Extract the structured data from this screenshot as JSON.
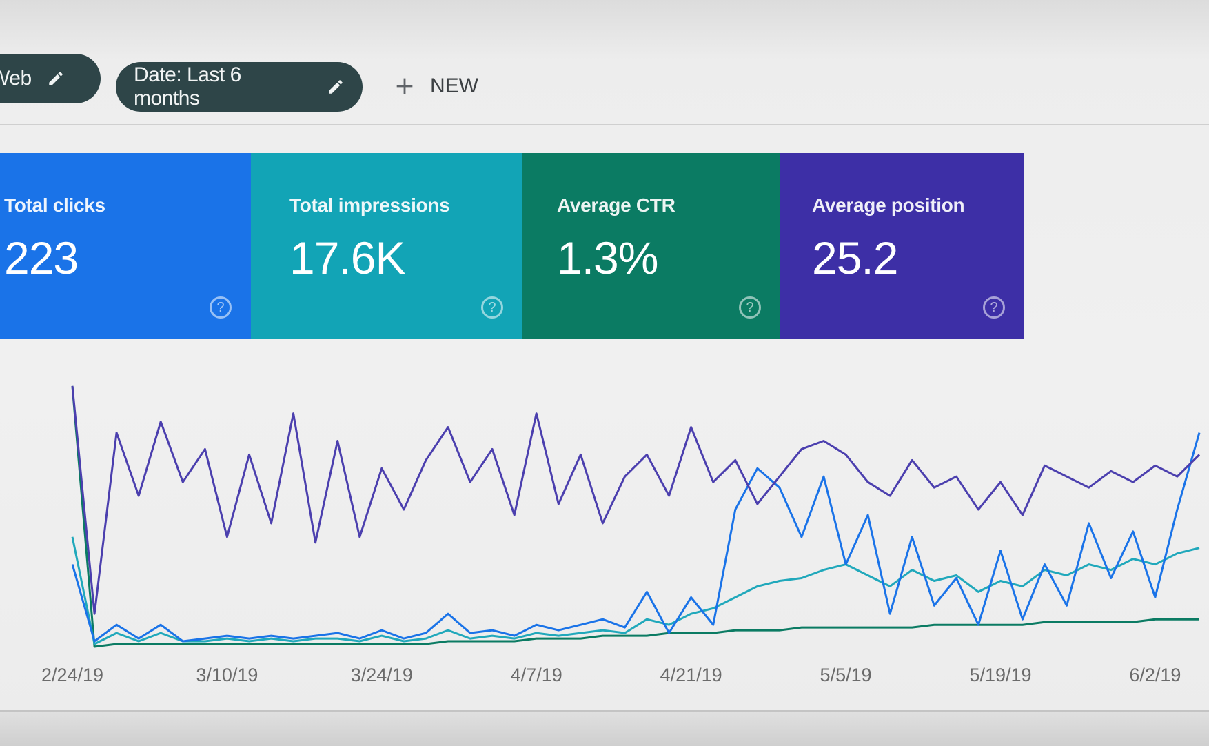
{
  "filters": {
    "device_chip": "Web",
    "date_chip": "Date: Last 6 months",
    "new_label": "NEW"
  },
  "metrics": [
    {
      "label": "Total clicks",
      "value": "223",
      "color": "#1a73e8"
    },
    {
      "label": "Total impressions",
      "value": "17.6K",
      "color": "#12a4b6"
    },
    {
      "label": "Average CTR",
      "value": "1.3%",
      "color": "#0b7b63"
    },
    {
      "label": "Average position",
      "value": "25.2",
      "color": "#3d2fa6"
    }
  ],
  "chart_data": {
    "type": "line",
    "x": [
      "2/24/19",
      "2/26/19",
      "2/28/19",
      "3/2/19",
      "3/4/19",
      "3/6/19",
      "3/8/19",
      "3/10/19",
      "3/12/19",
      "3/14/19",
      "3/16/19",
      "3/18/19",
      "3/20/19",
      "3/22/19",
      "3/24/19",
      "3/26/19",
      "3/28/19",
      "3/30/19",
      "4/1/19",
      "4/3/19",
      "4/5/19",
      "4/7/19",
      "4/9/19",
      "4/11/19",
      "4/13/19",
      "4/15/19",
      "4/17/19",
      "4/19/19",
      "4/21/19",
      "4/23/19",
      "4/25/19",
      "4/27/19",
      "4/29/19",
      "5/1/19",
      "5/3/19",
      "5/5/19",
      "5/7/19",
      "5/9/19",
      "5/11/19",
      "5/13/19",
      "5/15/19",
      "5/17/19",
      "5/19/19",
      "5/21/19",
      "5/23/19",
      "5/25/19",
      "5/27/19",
      "5/29/19",
      "5/31/19",
      "6/2/19",
      "6/4/19",
      "6/6/19"
    ],
    "x_tick_labels": [
      "2/24/19",
      "3/10/19",
      "3/24/19",
      "4/7/19",
      "4/21/19",
      "5/5/19",
      "5/19/19",
      "6/2/19"
    ],
    "series": [
      {
        "color": "#4b3fae",
        "values": [
          95,
          12,
          78,
          55,
          82,
          60,
          72,
          40,
          70,
          45,
          85,
          38,
          75,
          40,
          65,
          50,
          68,
          80,
          60,
          72,
          48,
          85,
          52,
          70,
          45,
          62,
          70,
          55,
          80,
          60,
          68,
          52,
          62,
          72,
          75,
          70,
          60,
          55,
          68,
          58,
          62,
          50,
          60,
          48,
          66,
          62,
          58,
          64,
          60,
          66,
          62,
          70
        ]
      },
      {
        "color": "#1a73e8",
        "values": [
          30,
          2,
          8,
          3,
          8,
          2,
          3,
          4,
          3,
          4,
          3,
          4,
          5,
          3,
          6,
          3,
          5,
          12,
          5,
          6,
          4,
          8,
          6,
          8,
          10,
          7,
          20,
          5,
          18,
          8,
          50,
          65,
          58,
          40,
          62,
          30,
          48,
          12,
          40,
          15,
          25,
          8,
          35,
          10,
          30,
          15,
          45,
          25,
          42,
          18,
          50,
          78
        ]
      },
      {
        "color": "#20a8bb",
        "values": [
          40,
          1,
          5,
          2,
          5,
          2,
          2,
          3,
          2,
          3,
          2,
          3,
          3,
          2,
          4,
          2,
          3,
          6,
          3,
          4,
          3,
          5,
          4,
          5,
          6,
          5,
          10,
          8,
          12,
          14,
          18,
          22,
          24,
          25,
          28,
          30,
          26,
          22,
          28,
          24,
          26,
          20,
          24,
          22,
          28,
          26,
          30,
          28,
          32,
          30,
          34,
          36
        ]
      },
      {
        "color": "#0b7b63",
        "values": [
          95,
          0,
          1,
          1,
          1,
          1,
          1,
          1,
          1,
          1,
          1,
          1,
          1,
          1,
          1,
          1,
          1,
          2,
          2,
          2,
          2,
          3,
          3,
          3,
          4,
          4,
          4,
          5,
          5,
          5,
          6,
          6,
          6,
          7,
          7,
          7,
          7,
          7,
          7,
          8,
          8,
          8,
          8,
          8,
          9,
          9,
          9,
          9,
          9,
          10,
          10,
          10
        ]
      }
    ],
    "ylim": [
      0,
      100
    ],
    "grid": false
  }
}
